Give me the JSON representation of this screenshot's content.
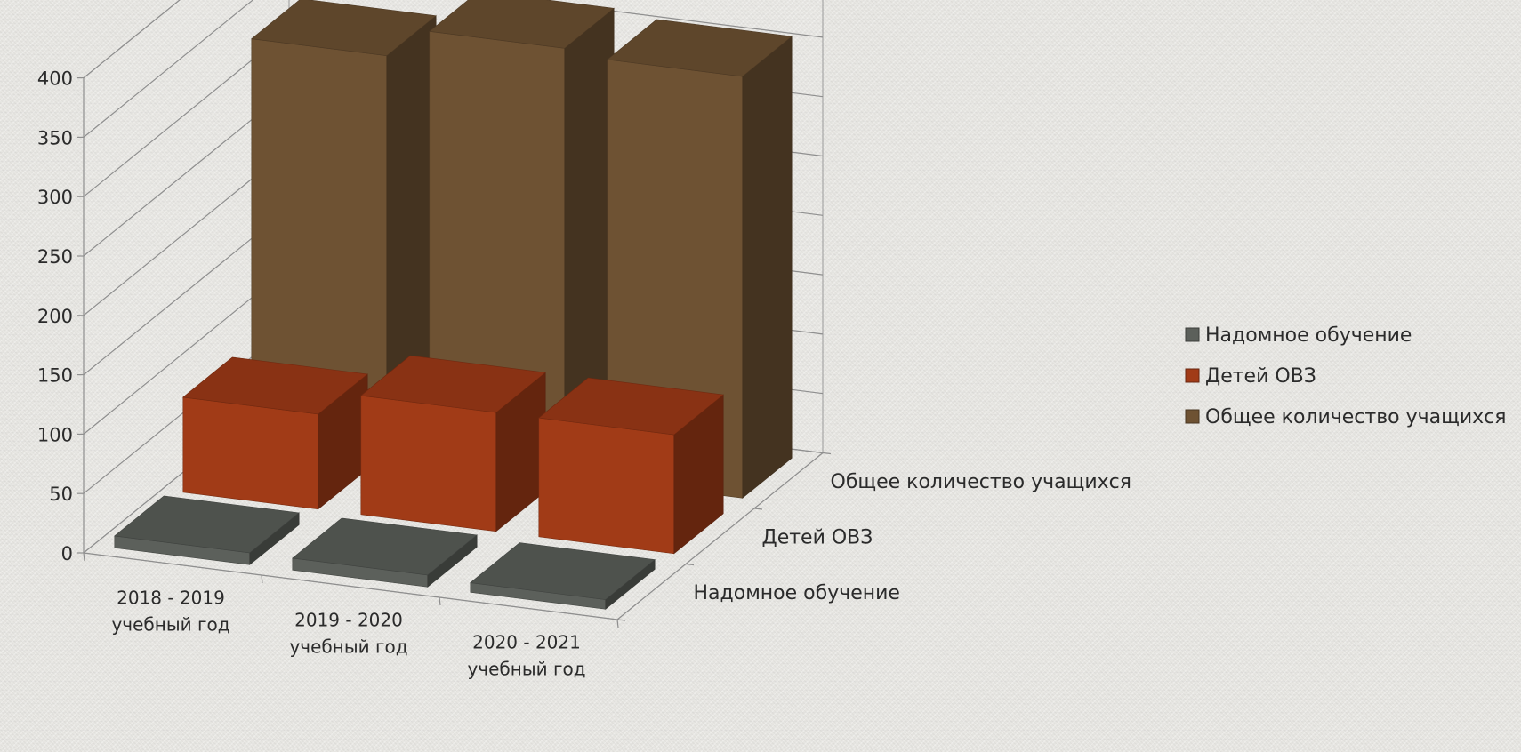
{
  "chart_data": {
    "type": "bar",
    "subtype": "3d-column",
    "categories": [
      "2018 - 2019 учебный год",
      "2019 - 2020 учебный год",
      "2020 - 2021 учебный год"
    ],
    "category_lines": [
      [
        "2018 - 2019",
        "учебный год"
      ],
      [
        "2019 - 2020",
        "учебный год"
      ],
      [
        "2020 - 2021",
        "учебный год"
      ]
    ],
    "series": [
      {
        "name": "Надомное обучение",
        "values": [
          10,
          10,
          8
        ],
        "color": "#5c605b"
      },
      {
        "name": "Детей ОВЗ",
        "values": [
          80,
          100,
          100
        ],
        "color": "#a13b17"
      },
      {
        "name": "Общее количество учащихся",
        "values": [
          335,
          360,
          355
        ],
        "color": "#6e5233"
      }
    ],
    "yticks": [
      "0",
      "50",
      "100",
      "150",
      "200",
      "250",
      "300",
      "350",
      "400"
    ],
    "ylim": [
      0,
      400
    ],
    "grid": true,
    "legend_position": "right"
  }
}
